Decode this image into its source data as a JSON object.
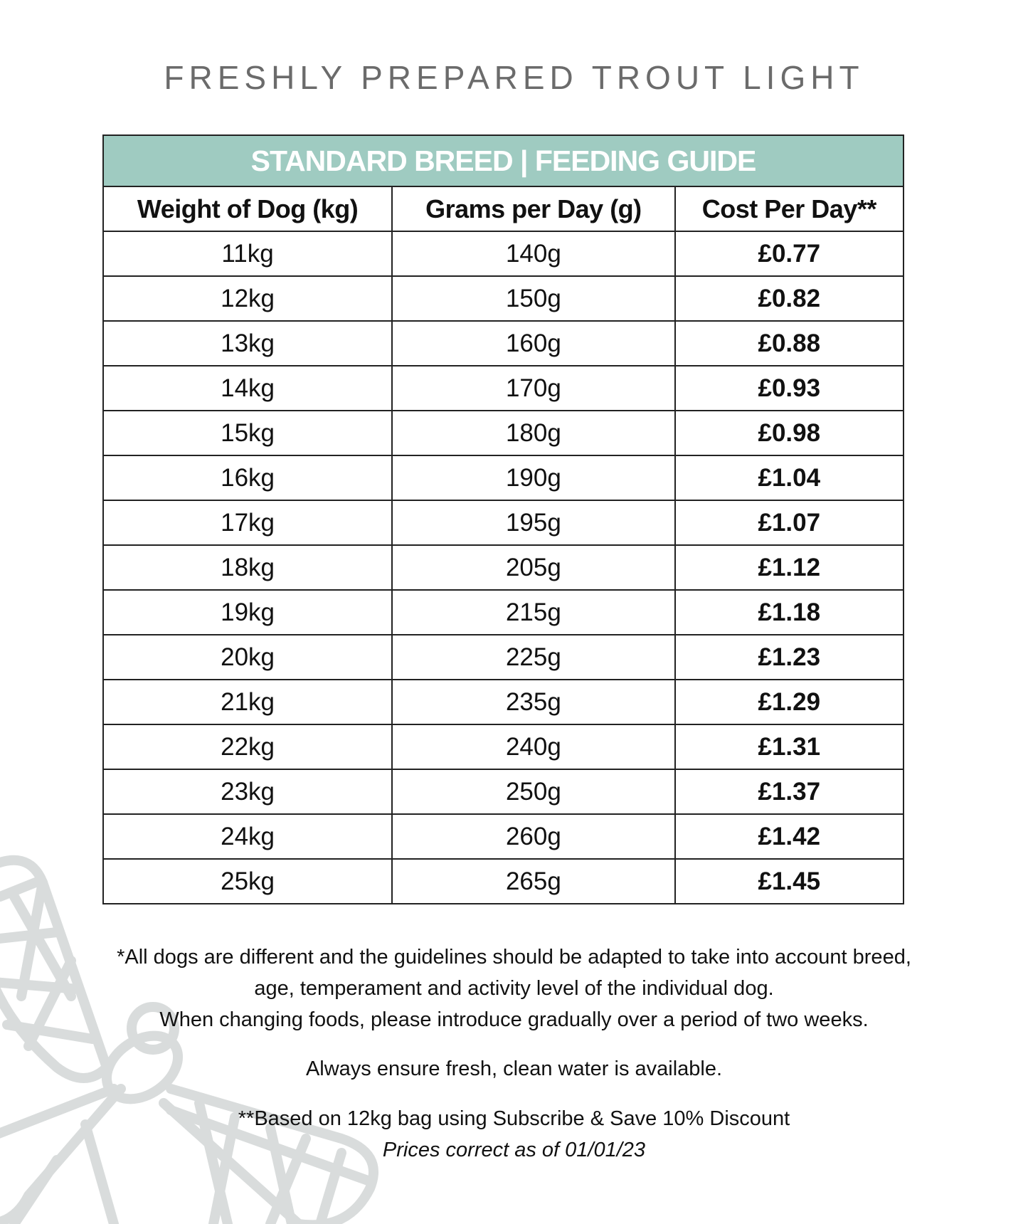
{
  "title": "FRESHLY PREPARED TROUT LIGHT",
  "table": {
    "banner": "STANDARD BREED | FEEDING GUIDE",
    "headers": [
      "Weight of Dog (kg)",
      "Grams per Day (g)",
      "Cost Per Day**"
    ],
    "rows": [
      [
        "11kg",
        "140g",
        "£0.77"
      ],
      [
        "12kg",
        "150g",
        "£0.82"
      ],
      [
        "13kg",
        "160g",
        "£0.88"
      ],
      [
        "14kg",
        "170g",
        "£0.93"
      ],
      [
        "15kg",
        "180g",
        "£0.98"
      ],
      [
        "16kg",
        "190g",
        "£1.04"
      ],
      [
        "17kg",
        "195g",
        "£1.07"
      ],
      [
        "18kg",
        "205g",
        "£1.12"
      ],
      [
        "19kg",
        "215g",
        "£1.18"
      ],
      [
        "20kg",
        "225g",
        "£1.23"
      ],
      [
        "21kg",
        "235g",
        "£1.29"
      ],
      [
        "22kg",
        "240g",
        "£1.31"
      ],
      [
        "23kg",
        "250g",
        "£1.37"
      ],
      [
        "24kg",
        "260g",
        "£1.42"
      ],
      [
        "25kg",
        "265g",
        "£1.45"
      ]
    ]
  },
  "notes": {
    "line1": "*All dogs are different and the guidelines should be adapted to take into account breed,",
    "line2": "age, temperament and activity level of the individual dog.",
    "line3": "When changing foods, please introduce gradually over a period of two weeks.",
    "water": "Always ensure fresh, clean water is available.",
    "pricing": "**Based on 12kg bag using Subscribe & Save 10% Discount",
    "prices_date": "Prices correct as of 01/01/23"
  },
  "colors": {
    "banner": "#9fcbc1",
    "title": "#6b6b6b",
    "watermark": "#d9dcdc"
  },
  "watermark_icon": "dragonfly-icon"
}
